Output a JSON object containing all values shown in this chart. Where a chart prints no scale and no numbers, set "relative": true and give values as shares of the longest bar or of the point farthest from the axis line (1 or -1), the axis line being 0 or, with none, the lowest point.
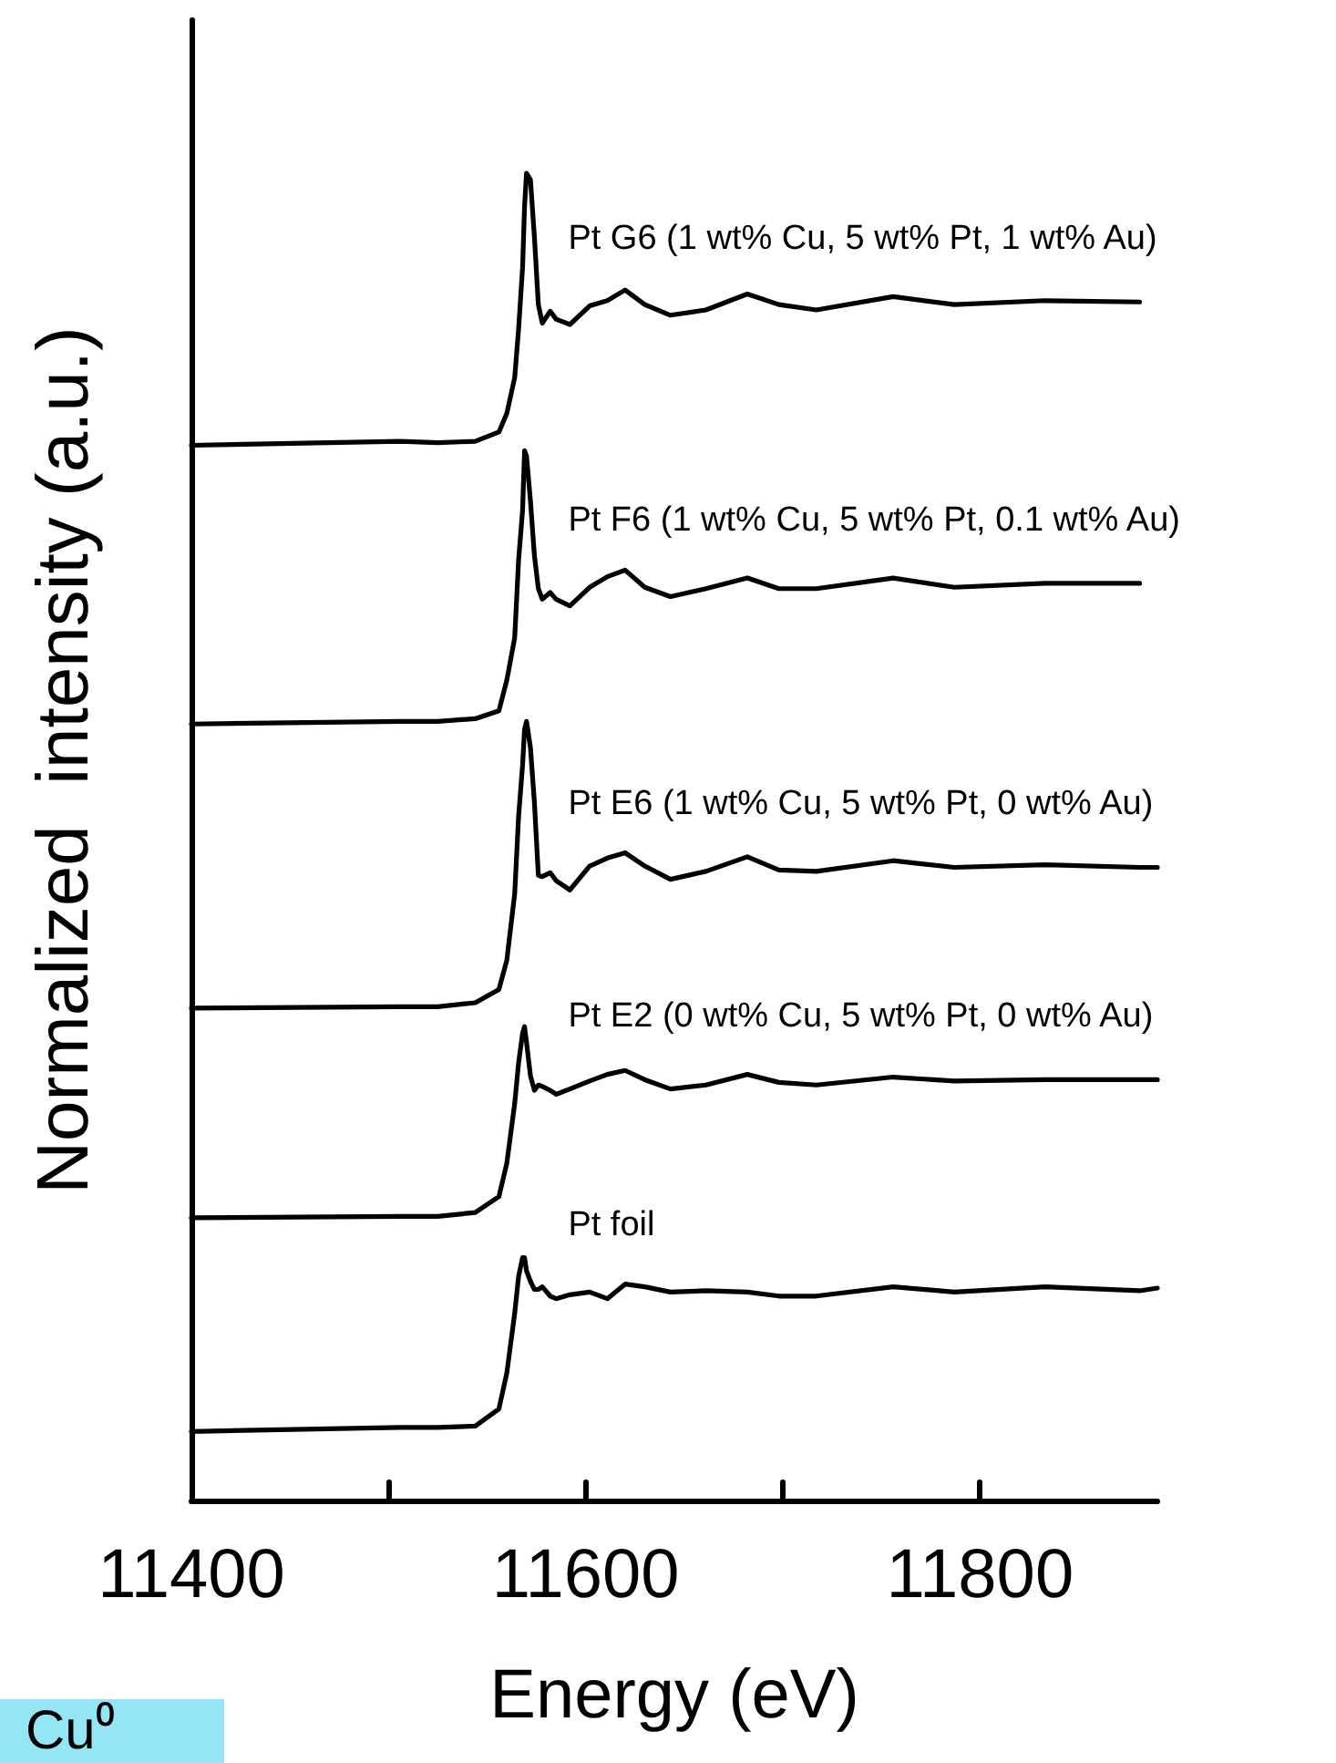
{
  "chart_data": {
    "type": "line",
    "relative": true,
    "xlabel": "Energy (eV)",
    "ylabel": "Normalized  intensity (a.u.)",
    "xlim": [
      11400,
      11890
    ],
    "xticks": [
      11400,
      {
        "value": 11500,
        "label": null
      },
      11600,
      {
        "value": 11700,
        "label": null
      },
      11800
    ],
    "x": [
      11400,
      11506,
      11525,
      11544,
      11556,
      11560,
      11564,
      11566,
      11568,
      11569,
      11570,
      11572,
      11574,
      11576,
      11578,
      11582,
      11585,
      11592,
      11602,
      11611,
      11620,
      11630,
      11643,
      11661,
      11682,
      11698,
      11717,
      11756,
      11787,
      11833,
      11881,
      11890
    ],
    "series": [
      {
        "name": "Pt G6 (1 wt% Cu, 5 wt% Pt, 1 wt% Au)",
        "color": "#000000",
        "values": [
          0.795,
          0.798,
          0.797,
          0.798,
          0.805,
          0.819,
          0.846,
          0.883,
          0.929,
          0.975,
          1.0,
          0.995,
          0.952,
          0.901,
          0.887,
          0.896,
          0.89,
          0.886,
          0.9,
          0.904,
          0.912,
          0.901,
          0.893,
          0.897,
          0.909,
          0.901,
          0.897,
          0.907,
          0.901,
          0.904,
          0.903,
          null
        ]
      },
      {
        "name": "Pt F6 (1 wt% Cu, 5 wt% Pt, 0.1 wt% Au)",
        "color": "#000000",
        "values": [
          0.585,
          0.587,
          0.587,
          0.589,
          0.595,
          0.618,
          0.65,
          0.709,
          0.746,
          0.791,
          0.787,
          0.753,
          0.712,
          0.687,
          0.679,
          0.684,
          0.679,
          0.674,
          0.688,
          0.696,
          0.701,
          0.688,
          0.681,
          0.687,
          0.695,
          0.687,
          0.687,
          0.695,
          0.688,
          0.691,
          0.691,
          null
        ]
      },
      {
        "name": "Pt E6 (1 wt% Cu, 5 wt% Pt, 0 wt% Au)",
        "color": "#000000",
        "values": [
          0.371,
          0.372,
          0.372,
          0.375,
          0.385,
          0.407,
          0.457,
          0.516,
          0.554,
          0.581,
          0.587,
          0.567,
          0.526,
          0.471,
          0.47,
          0.473,
          0.467,
          0.46,
          0.478,
          0.484,
          0.488,
          0.478,
          0.468,
          0.474,
          0.485,
          0.475,
          0.474,
          0.482,
          0.477,
          0.479,
          0.477,
          0.477
        ]
      },
      {
        "name": "Pt E2 (0 wt% Cu, 5 wt% Pt, 0 wt% Au)",
        "color": "#000000",
        "values": [
          0.213,
          0.214,
          0.214,
          0.217,
          0.229,
          0.254,
          0.299,
          0.33,
          0.352,
          0.357,
          0.345,
          0.32,
          0.309,
          0.313,
          0.312,
          0.309,
          0.306,
          0.31,
          0.316,
          0.321,
          0.324,
          0.317,
          0.31,
          0.313,
          0.321,
          0.315,
          0.313,
          0.319,
          0.316,
          0.317,
          0.317,
          0.317
        ]
      },
      {
        "name": "Pt foil",
        "color": "#000000",
        "values": [
          0.052,
          0.055,
          0.055,
          0.056,
          0.069,
          0.096,
          0.141,
          0.169,
          0.183,
          0.183,
          0.173,
          0.165,
          0.159,
          0.159,
          0.161,
          0.154,
          0.152,
          0.155,
          0.157,
          0.152,
          0.163,
          0.161,
          0.157,
          0.158,
          0.157,
          0.154,
          0.154,
          0.161,
          0.157,
          0.161,
          0.158,
          0.16
        ]
      }
    ],
    "annotations": [
      "Cu⁰"
    ],
    "legend": false,
    "grid": false,
    "marker": "none",
    "line_style": "solid"
  }
}
